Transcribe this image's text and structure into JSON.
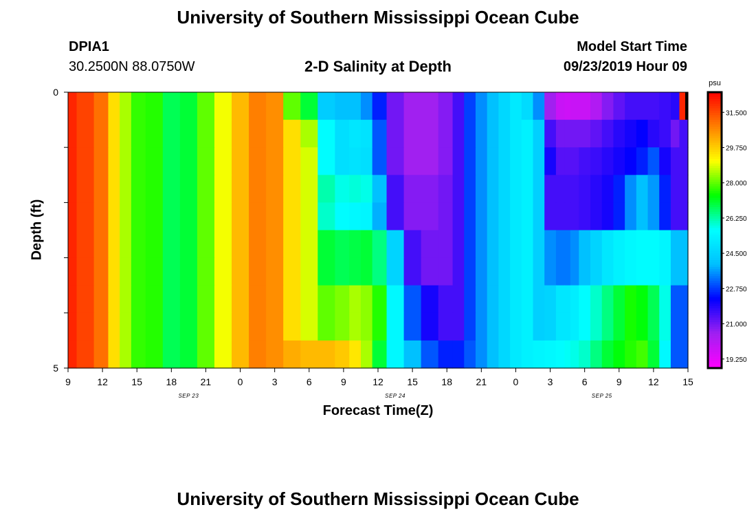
{
  "header": {
    "title_top": "University of Southern Mississippi Ocean Cube",
    "title_bottom": "University of Southern Mississippi Ocean Cube",
    "station_id": "DPIA1",
    "coords": "30.2500N 88.0750W",
    "plot_title": "2-D Salinity at Depth",
    "model_label": "Model Start Time",
    "model_time": "09/23/2019 Hour 09"
  },
  "colors": {
    "stops": [
      "#ff00ff",
      "#a020f0",
      "#0000ff",
      "#00bfff",
      "#00ffff",
      "#00ff00",
      "#ffff00",
      "#ff8000",
      "#ff0000"
    ]
  },
  "chart_data": {
    "type": "heatmap",
    "title": "2-D Salinity at Depth",
    "xlabel": "Forecast Time(Z)",
    "ylabel": "Depth (ft)",
    "x_tick_labels": [
      "9",
      "12",
      "15",
      "18",
      "21",
      "0",
      "3",
      "6",
      "9",
      "12",
      "15",
      "18",
      "21",
      "0",
      "3",
      "6",
      "9",
      "12",
      "15"
    ],
    "x_date_labels": [
      {
        "label": "SEP 23",
        "tick_index": 3.5
      },
      {
        "label": "SEP 24",
        "tick_index": 9.5
      },
      {
        "label": "SEP 25",
        "tick_index": 15.5
      }
    ],
    "x_hours_range": [
      0,
      54
    ],
    "y_tick_labels": [
      "0",
      "5"
    ],
    "ylim": [
      0,
      5
    ],
    "y_minor_ticks": 6,
    "colorbar": {
      "unit": "psu",
      "range": [
        18.8,
        32.5
      ],
      "tick_labels": [
        "31.500",
        "29.750",
        "28.000",
        "26.250",
        "24.500",
        "22.750",
        "21.000",
        "19.250"
      ],
      "tick_values": [
        31.5,
        29.75,
        28.0,
        26.25,
        24.5,
        22.75,
        21.0,
        19.25
      ]
    },
    "hours": [
      0,
      1.5,
      3,
      4,
      5,
      6,
      7.5,
      9,
      10.5,
      12,
      13.5,
      15,
      16.5,
      18,
      19.5,
      21,
      22.5,
      24,
      25,
      26,
      27,
      28.5,
      30,
      31.5,
      33,
      34,
      35,
      36,
      37,
      38,
      39,
      40,
      41,
      42,
      43,
      43.5,
      44,
      45,
      46,
      47,
      48,
      49,
      50,
      51,
      52,
      53,
      53.5,
      54
    ],
    "layers": [
      {
        "depth_range": [
          0,
          0.5
        ],
        "values": [
          32.0,
          31.6,
          31.0,
          29.5,
          28.5,
          27.7,
          27.6,
          26.8,
          27.0,
          28.0,
          29.0,
          30.0,
          30.8,
          30.6,
          28.0,
          27.0,
          24.3,
          24.0,
          24.0,
          23.5,
          22.5,
          21.0,
          20.5,
          20.5,
          20.8,
          21.5,
          22.8,
          23.5,
          24.0,
          24.6,
          25.1,
          24.7,
          23.5,
          20.5,
          19.8,
          19.7,
          19.8,
          19.8,
          20.2,
          20.8,
          21.2,
          21.5,
          21.5,
          21.5,
          21.6,
          21.8,
          32.0,
          32.0
        ]
      },
      {
        "depth_range": [
          0.5,
          1.0
        ],
        "values": [
          32.0,
          31.6,
          31.0,
          29.5,
          28.5,
          27.7,
          27.6,
          26.8,
          27.0,
          28.0,
          29.0,
          30.0,
          30.8,
          30.6,
          29.5,
          28.5,
          25.6,
          24.8,
          25.0,
          24.9,
          23.0,
          21.0,
          20.5,
          20.5,
          20.8,
          21.5,
          22.8,
          23.5,
          24.0,
          24.6,
          25.1,
          25.3,
          24.4,
          21.5,
          21.0,
          21.0,
          21.0,
          21.0,
          21.2,
          21.5,
          21.8,
          22.0,
          22.2,
          21.8,
          21.6,
          21.0,
          21.5,
          21.5
        ]
      },
      {
        "depth_range": [
          1.0,
          1.5
        ],
        "values": [
          32.0,
          31.6,
          31.0,
          29.5,
          28.5,
          27.7,
          27.6,
          26.8,
          27.0,
          28.0,
          29.0,
          30.0,
          30.8,
          30.6,
          29.5,
          28.8,
          25.6,
          24.8,
          24.9,
          24.8,
          23.0,
          21.0,
          20.5,
          20.5,
          20.8,
          21.5,
          22.8,
          23.5,
          24.0,
          24.6,
          25.1,
          25.3,
          24.4,
          22.0,
          21.3,
          21.3,
          21.3,
          21.5,
          21.6,
          21.8,
          22.0,
          22.2,
          22.5,
          23.0,
          22.0,
          21.5,
          21.5,
          21.5
        ]
      },
      {
        "depth_range": [
          1.5,
          2.0
        ],
        "values": [
          32.0,
          31.6,
          31.0,
          29.5,
          28.5,
          27.7,
          27.6,
          26.8,
          27.0,
          28.0,
          29.0,
          30.0,
          30.8,
          30.6,
          29.5,
          28.8,
          26.2,
          25.8,
          25.9,
          25.8,
          24.0,
          21.5,
          20.8,
          20.8,
          21.0,
          21.5,
          22.8,
          23.5,
          24.0,
          24.6,
          25.1,
          25.3,
          24.4,
          21.5,
          21.5,
          21.5,
          21.5,
          21.6,
          21.8,
          22.0,
          22.5,
          23.5,
          24.0,
          23.6,
          22.5,
          21.5,
          21.5,
          21.5
        ]
      },
      {
        "depth_range": [
          2.0,
          2.5
        ],
        "values": [
          32.0,
          31.6,
          31.0,
          29.5,
          28.5,
          27.7,
          27.6,
          26.8,
          27.0,
          28.0,
          29.0,
          30.0,
          30.8,
          30.6,
          29.5,
          28.8,
          26.0,
          25.6,
          25.5,
          25.4,
          23.8,
          21.5,
          20.8,
          20.8,
          21.0,
          21.5,
          22.8,
          23.5,
          24.0,
          24.6,
          25.1,
          25.3,
          24.4,
          21.5,
          21.5,
          21.5,
          21.5,
          21.6,
          21.8,
          22.0,
          22.5,
          23.5,
          24.0,
          23.6,
          22.5,
          21.5,
          21.5,
          21.5
        ]
      },
      {
        "depth_range": [
          2.5,
          3.0
        ],
        "values": [
          32.0,
          31.6,
          31.0,
          29.5,
          28.5,
          27.7,
          27.6,
          26.8,
          27.0,
          28.0,
          29.0,
          30.0,
          30.8,
          30.6,
          29.5,
          28.8,
          27.0,
          26.8,
          26.9,
          27.0,
          26.5,
          24.5,
          21.5,
          21.0,
          21.0,
          21.5,
          22.8,
          23.5,
          24.0,
          24.6,
          25.1,
          25.3,
          24.4,
          23.5,
          23.3,
          23.3,
          23.5,
          24.0,
          24.5,
          25.0,
          25.3,
          25.5,
          25.6,
          25.6,
          25.4,
          24.0,
          24.0,
          24.0
        ]
      },
      {
        "depth_range": [
          3.0,
          3.5
        ],
        "values": [
          32.0,
          31.6,
          31.0,
          29.5,
          28.5,
          27.7,
          27.6,
          26.8,
          27.0,
          28.0,
          29.0,
          30.0,
          30.8,
          30.6,
          29.5,
          28.8,
          27.0,
          26.8,
          26.9,
          27.0,
          26.5,
          24.5,
          21.5,
          21.0,
          21.0,
          21.5,
          22.8,
          23.5,
          24.0,
          24.6,
          25.1,
          25.3,
          24.4,
          23.5,
          23.3,
          23.3,
          23.5,
          24.0,
          24.5,
          25.0,
          25.3,
          25.5,
          25.6,
          25.6,
          25.4,
          24.0,
          24.0,
          24.0
        ]
      },
      {
        "depth_range": [
          3.5,
          4.0
        ],
        "values": [
          32.0,
          31.6,
          31.0,
          29.5,
          28.5,
          27.7,
          27.6,
          26.8,
          27.0,
          28.0,
          29.0,
          30.0,
          30.8,
          30.6,
          29.5,
          28.8,
          28.0,
          28.2,
          28.5,
          28.3,
          27.6,
          25.5,
          23.0,
          22.0,
          21.5,
          21.5,
          22.8,
          23.5,
          24.0,
          24.6,
          25.1,
          25.3,
          24.4,
          24.5,
          25.0,
          25.0,
          25.2,
          25.6,
          26.0,
          26.5,
          27.0,
          27.5,
          27.3,
          26.8,
          25.8,
          23.0,
          23.0,
          23.0
        ]
      },
      {
        "depth_range": [
          4.0,
          4.5
        ],
        "values": [
          32.0,
          31.6,
          31.0,
          29.5,
          28.5,
          27.7,
          27.6,
          26.8,
          27.0,
          28.0,
          29.0,
          30.0,
          30.8,
          30.6,
          29.5,
          28.8,
          28.0,
          28.2,
          28.5,
          28.3,
          27.6,
          25.5,
          23.0,
          22.0,
          21.5,
          21.5,
          22.8,
          23.5,
          24.0,
          24.6,
          25.1,
          25.3,
          24.4,
          24.5,
          25.0,
          25.0,
          25.2,
          25.6,
          26.0,
          26.5,
          27.0,
          27.5,
          27.3,
          26.8,
          25.8,
          23.0,
          23.0,
          23.0
        ]
      },
      {
        "depth_range": [
          4.5,
          5.0
        ],
        "values": [
          32.0,
          31.6,
          31.0,
          29.5,
          28.5,
          27.7,
          27.6,
          26.8,
          27.0,
          28.0,
          29.0,
          30.0,
          30.8,
          30.6,
          30.2,
          30.0,
          30.0,
          29.8,
          29.4,
          28.5,
          27.0,
          25.5,
          24.0,
          23.0,
          22.5,
          22.5,
          23.0,
          23.5,
          24.0,
          24.6,
          25.1,
          25.3,
          25.4,
          25.5,
          25.6,
          25.7,
          25.8,
          26.0,
          26.5,
          27.0,
          27.3,
          27.6,
          27.8,
          27.0,
          25.5,
          23.0,
          23.0,
          23.0
        ]
      }
    ]
  }
}
